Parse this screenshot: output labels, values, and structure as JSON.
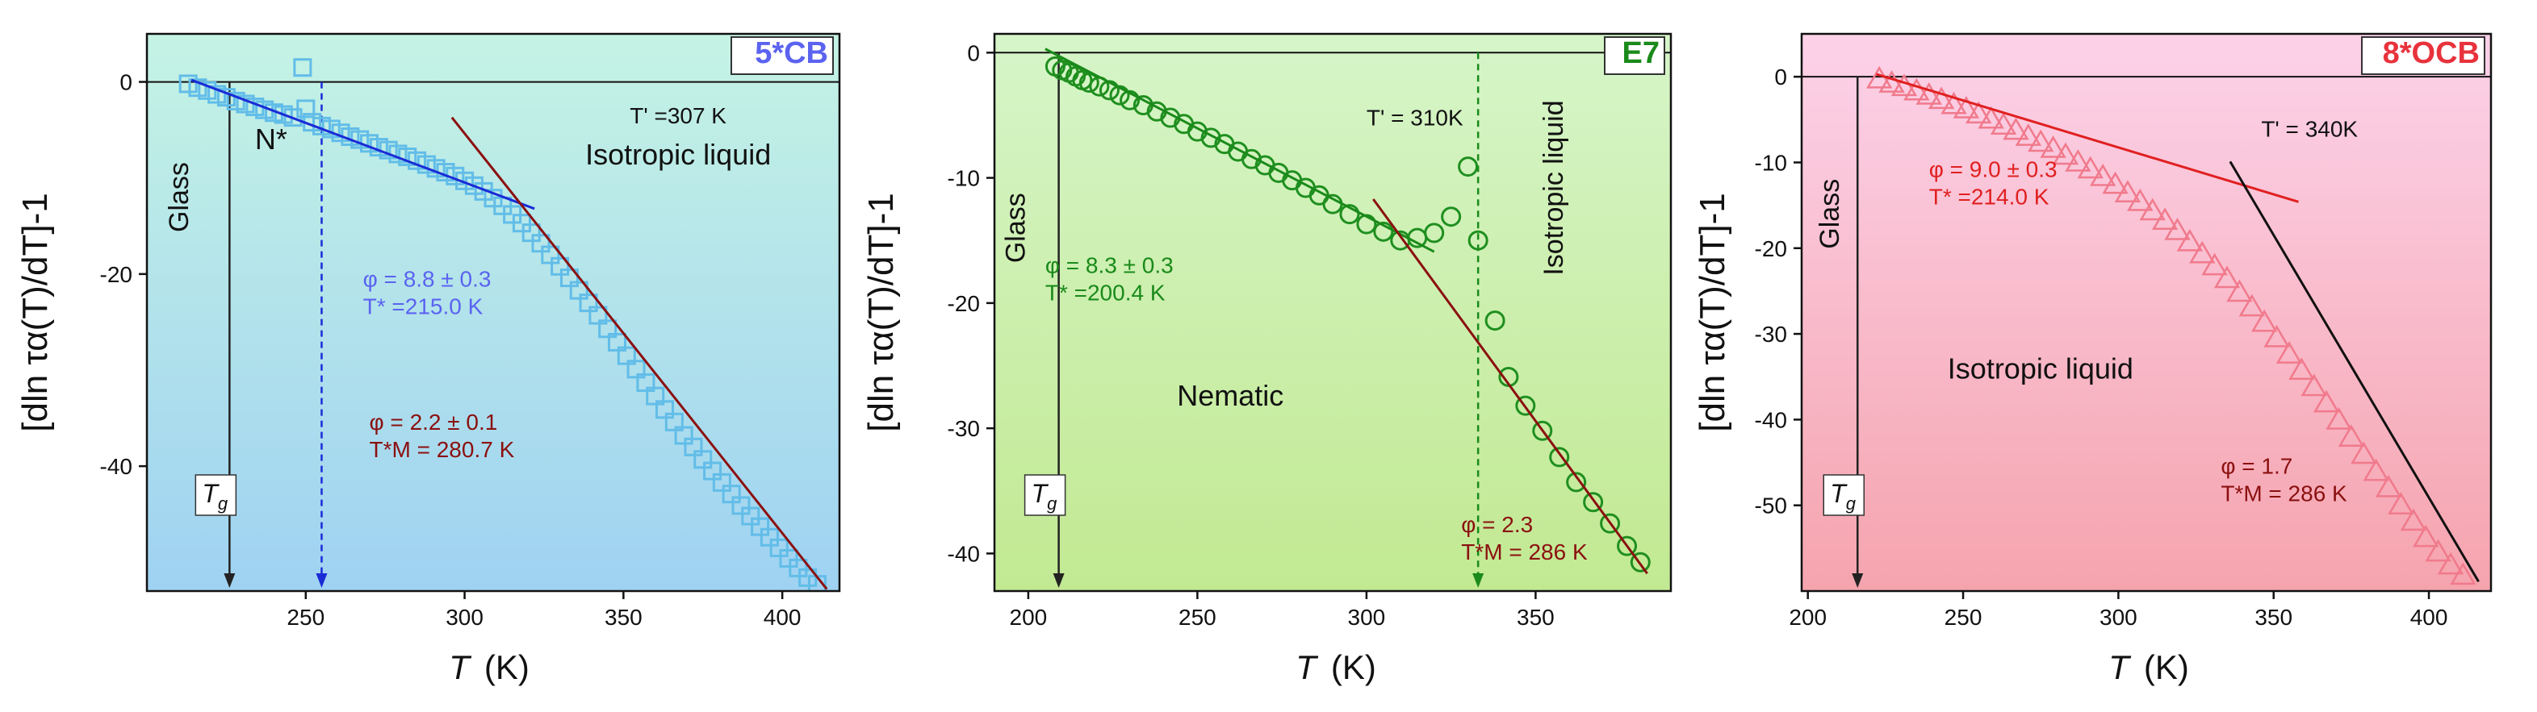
{
  "chart_data": [
    {
      "type": "scatter",
      "title": "5*CB",
      "title_color": "#5b63f0",
      "xlabel_symbol": "T",
      "xlabel_unit": "(K)",
      "ylabel": "[dln τα(T)/dT]-1",
      "xlim": [
        200,
        418
      ],
      "ylim": [
        -53,
        5
      ],
      "xticks": [
        250,
        300,
        350,
        400
      ],
      "yticks": [
        0,
        -20,
        -40
      ],
      "bg_top": "#c5f3e4",
      "bg_bottom": "#9fd2f2",
      "marker": "square",
      "marker_color": "#62bde8",
      "points": [
        [
          213,
          -0.2
        ],
        [
          216,
          -0.6
        ],
        [
          219,
          -0.9
        ],
        [
          222,
          -1.3
        ],
        [
          225,
          -1.6
        ],
        [
          228,
          -2.0
        ],
        [
          231,
          -2.3
        ],
        [
          234,
          -2.6
        ],
        [
          237,
          -2.9
        ],
        [
          240,
          -3.2
        ],
        [
          243,
          -3.4
        ],
        [
          246,
          -3.7
        ],
        [
          249,
          1.5
        ],
        [
          250,
          -2.8
        ],
        [
          252,
          -4.2
        ],
        [
          255,
          -4.6
        ],
        [
          258,
          -4.9
        ],
        [
          261,
          -5.3
        ],
        [
          264,
          -5.7
        ],
        [
          267,
          -6.0
        ],
        [
          270,
          -6.4
        ],
        [
          273,
          -6.8
        ],
        [
          276,
          -7.1
        ],
        [
          279,
          -7.5
        ],
        [
          282,
          -7.8
        ],
        [
          285,
          -8.2
        ],
        [
          288,
          -8.6
        ],
        [
          291,
          -9.0
        ],
        [
          294,
          -9.4
        ],
        [
          297,
          -9.8
        ],
        [
          300,
          -10.3
        ],
        [
          303,
          -10.8
        ],
        [
          306,
          -11.4
        ],
        [
          309,
          -12.1
        ],
        [
          312,
          -12.9
        ],
        [
          315,
          -13.8
        ],
        [
          318,
          -14.7
        ],
        [
          321,
          -15.7
        ],
        [
          324,
          -16.8
        ],
        [
          327,
          -18.0
        ],
        [
          330,
          -19.2
        ],
        [
          333,
          -20.4
        ],
        [
          336,
          -21.7
        ],
        [
          339,
          -23.0
        ],
        [
          342,
          -24.3
        ],
        [
          345,
          -25.7
        ],
        [
          348,
          -27.1
        ],
        [
          351,
          -28.5
        ],
        [
          354,
          -29.9
        ],
        [
          357,
          -31.3
        ],
        [
          360,
          -32.7
        ],
        [
          363,
          -34.1
        ],
        [
          366,
          -35.4
        ],
        [
          369,
          -36.8
        ],
        [
          372,
          -38.0
        ],
        [
          375,
          -39.3
        ],
        [
          378,
          -40.5
        ],
        [
          381,
          -41.7
        ],
        [
          384,
          -42.9
        ],
        [
          387,
          -44.1
        ],
        [
          390,
          -45.2
        ],
        [
          393,
          -46.3
        ],
        [
          396,
          -47.4
        ],
        [
          399,
          -48.5
        ],
        [
          402,
          -49.6
        ],
        [
          405,
          -50.6
        ],
        [
          408,
          -51.6
        ],
        [
          411,
          -52.3
        ]
      ],
      "fits": [
        {
          "x": [
            214,
            322
          ],
          "y": [
            0.2,
            -13.2
          ],
          "color": "#1a2bd6"
        },
        {
          "x": [
            296,
            414
          ],
          "y": [
            -3.7,
            -52.8
          ],
          "color": "#8b1010"
        }
      ],
      "vlines": [
        {
          "x": 226,
          "color": "#222222",
          "dash": false
        },
        {
          "x": 255,
          "color": "#1a2bd6",
          "dash": true
        }
      ],
      "tg_label": "g",
      "tg_x": 226,
      "regions": [
        {
          "text": "Glass",
          "x": 213,
          "y": -12,
          "rotate": -90,
          "color": "#111111",
          "size": 34
        },
        {
          "text": "N*",
          "x": 234,
          "y": -7,
          "rotate": 0,
          "color": "#111111",
          "size": 36
        },
        {
          "text": "Isotropic liquid",
          "x": 338,
          "y": -8.6,
          "rotate": 0,
          "color": "#111111",
          "size": 36
        }
      ],
      "annotations": [
        {
          "lines": [
            "φ = 8.8 ± 0.3",
            "T* =215.0 K"
          ],
          "x": 268,
          "y": -21.3,
          "color": "#5b63f0"
        },
        {
          "lines": [
            "φ = 2.2 ± 0.1",
            "T*M = 280.7 K"
          ],
          "x": 270,
          "y": -36.2,
          "color": "#8b1010"
        },
        {
          "lines": [
            "T' =307 K"
          ],
          "x": 352,
          "y": -4.3,
          "color": "#111111"
        }
      ]
    },
    {
      "type": "scatter",
      "title": "E7",
      "title_color": "#1a8a1a",
      "xlabel_symbol": "T",
      "xlabel_unit": "(K)",
      "ylabel": "[dln τα(T)/dT]-1",
      "xlim": [
        190,
        390
      ],
      "ylim": [
        -43,
        1.5
      ],
      "xticks": [
        200,
        250,
        300,
        350
      ],
      "yticks": [
        0,
        -10,
        -20,
        -30,
        -40
      ],
      "bg_top": "#d6f5c9",
      "bg_bottom": "#c2e992",
      "marker": "circle",
      "marker_color": "#1f8f1f",
      "points": [
        [
          208,
          -1.1
        ],
        [
          210,
          -1.4
        ],
        [
          212,
          -1.6
        ],
        [
          214,
          -1.9
        ],
        [
          216,
          -2.2
        ],
        [
          218,
          -2.4
        ],
        [
          221,
          -2.7
        ],
        [
          224,
          -3.0
        ],
        [
          227,
          -3.4
        ],
        [
          230,
          -3.8
        ],
        [
          234,
          -4.2
        ],
        [
          238,
          -4.7
        ],
        [
          242,
          -5.2
        ],
        [
          246,
          -5.7
        ],
        [
          250,
          -6.3
        ],
        [
          254,
          -6.8
        ],
        [
          258,
          -7.3
        ],
        [
          262,
          -7.9
        ],
        [
          266,
          -8.5
        ],
        [
          270,
          -9.0
        ],
        [
          274,
          -9.6
        ],
        [
          278,
          -10.2
        ],
        [
          282,
          -10.8
        ],
        [
          286,
          -11.4
        ],
        [
          290,
          -12.1
        ],
        [
          295,
          -12.9
        ],
        [
          300,
          -13.7
        ],
        [
          305,
          -14.3
        ],
        [
          310,
          -15.0
        ],
        [
          315,
          -14.8
        ],
        [
          320,
          -14.4
        ],
        [
          325,
          -13.1
        ],
        [
          330,
          -9.1
        ],
        [
          333,
          -15.0
        ],
        [
          338,
          -21.4
        ],
        [
          342,
          -25.9
        ],
        [
          347,
          -28.2
        ],
        [
          352,
          -30.2
        ],
        [
          357,
          -32.3
        ],
        [
          362,
          -34.3
        ],
        [
          367,
          -35.9
        ],
        [
          372,
          -37.6
        ],
        [
          377,
          -39.4
        ],
        [
          381,
          -40.7
        ]
      ],
      "fits": [
        {
          "x": [
            205,
            320
          ],
          "y": [
            0.3,
            -15.9
          ],
          "color": "#1a8a1a"
        },
        {
          "x": [
            302,
            383
          ],
          "y": [
            -11.7,
            -41.6
          ],
          "color": "#8b1010"
        }
      ],
      "vlines": [
        {
          "x": 209,
          "color": "#222222",
          "dash": false
        },
        {
          "x": 333,
          "color": "#1a8a1a",
          "dash": true
        }
      ],
      "tg_label": "g",
      "tg_x": 209,
      "regions": [
        {
          "text": "Glass",
          "x": 199,
          "y": -14,
          "rotate": -90,
          "color": "#111111",
          "size": 34
        },
        {
          "text": "Isotropic liquid",
          "x": 358,
          "y": -10.8,
          "rotate": -90,
          "color": "#111111",
          "size": 34
        },
        {
          "text": "Nematic",
          "x": 244,
          "y": -28.2,
          "rotate": 0,
          "color": "#111111",
          "size": 36
        }
      ],
      "annotations": [
        {
          "lines": [
            "φ = 8.3 ± 0.3",
            "T* =200.4 K"
          ],
          "x": 205,
          "y": -17.6,
          "color": "#1a8a1a"
        },
        {
          "lines": [
            "T' = 310K"
          ],
          "x": 300,
          "y": -5.8,
          "color": "#111111"
        },
        {
          "lines": [
            "φ = 2.3",
            "T*M = 286 K"
          ],
          "x": 328,
          "y": -38.3,
          "color": "#8b1010"
        }
      ]
    },
    {
      "type": "scatter",
      "title": "8*OCB",
      "title_color": "#e8323c",
      "xlabel_symbol": "T",
      "xlabel_unit": "(K)",
      "ylabel": "[dln τα(T)/dT]-1",
      "xlim": [
        198,
        420
      ],
      "ylim": [
        -60,
        5
      ],
      "xticks": [
        200,
        250,
        300,
        350,
        400
      ],
      "yticks": [
        0,
        -10,
        -20,
        -30,
        -40,
        -50
      ],
      "bg_top": "#fcd2e9",
      "bg_bottom": "#f5a4ae",
      "marker": "triangle",
      "marker_color": "#f07a8c",
      "points": [
        [
          223,
          -0.3
        ],
        [
          227,
          -0.8
        ],
        [
          231,
          -1.2
        ],
        [
          235,
          -1.7
        ],
        [
          239,
          -2.2
        ],
        [
          243,
          -2.7
        ],
        [
          247,
          -3.3
        ],
        [
          251,
          -3.8
        ],
        [
          255,
          -4.4
        ],
        [
          259,
          -5.0
        ],
        [
          263,
          -5.7
        ],
        [
          267,
          -6.3
        ],
        [
          271,
          -7.0
        ],
        [
          275,
          -7.7
        ],
        [
          279,
          -8.4
        ],
        [
          283,
          -9.2
        ],
        [
          287,
          -10.0
        ],
        [
          291,
          -10.8
        ],
        [
          295,
          -11.7
        ],
        [
          299,
          -12.6
        ],
        [
          303,
          -13.6
        ],
        [
          307,
          -14.6
        ],
        [
          311,
          -15.7
        ],
        [
          315,
          -16.8
        ],
        [
          319,
          -18.0
        ],
        [
          323,
          -19.3
        ],
        [
          327,
          -20.7
        ],
        [
          331,
          -22.1
        ],
        [
          335,
          -23.6
        ],
        [
          339,
          -25.2
        ],
        [
          343,
          -26.9
        ],
        [
          347,
          -28.7
        ],
        [
          351,
          -30.5
        ],
        [
          355,
          -32.4
        ],
        [
          359,
          -34.3
        ],
        [
          363,
          -36.2
        ],
        [
          367,
          -38.1
        ],
        [
          371,
          -40.1
        ],
        [
          375,
          -42.1
        ],
        [
          379,
          -44.1
        ],
        [
          383,
          -46.1
        ],
        [
          387,
          -48.0
        ],
        [
          391,
          -50.0
        ],
        [
          395,
          -51.9
        ],
        [
          399,
          -53.8
        ],
        [
          403,
          -55.5
        ],
        [
          407,
          -57.0
        ],
        [
          411,
          -58.2
        ]
      ],
      "fits": [
        {
          "x": [
            222,
            358
          ],
          "y": [
            0.3,
            -14.6
          ],
          "color": "#e02020"
        },
        {
          "x": [
            336,
            416
          ],
          "y": [
            -9.9,
            -58.9
          ],
          "color": "#111111"
        }
      ],
      "vlines": [
        {
          "x": 216,
          "color": "#222222",
          "dash": false
        }
      ],
      "tg_label": "g",
      "tg_x": 216,
      "regions": [
        {
          "text": "Glass",
          "x": 210,
          "y": -16,
          "rotate": -90,
          "color": "#111111",
          "size": 34
        },
        {
          "text": "Isotropic liquid",
          "x": 245,
          "y": -35.2,
          "rotate": 0,
          "color": "#111111",
          "size": 36
        }
      ],
      "annotations": [
        {
          "lines": [
            "φ = 9.0 ± 0.3",
            "T* =214.0 K"
          ],
          "x": 239,
          "y": -11.7,
          "color": "#e02020"
        },
        {
          "lines": [
            "T' = 340K"
          ],
          "x": 346,
          "y": -7.0,
          "color": "#111111"
        },
        {
          "lines": [
            "φ = 1.7",
            "T*M = 286 K"
          ],
          "x": 333,
          "y": -46.3,
          "color": "#8b1010"
        }
      ]
    }
  ]
}
